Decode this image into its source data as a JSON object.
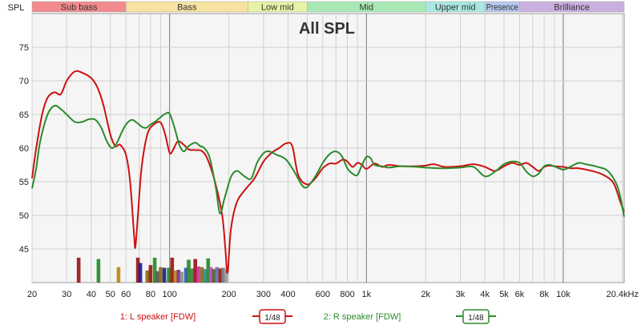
{
  "chart_data": {
    "type": "line",
    "title": "All SPL",
    "ylabel": "SPL",
    "x_scale": "log",
    "xlim": [
      20,
      20400
    ],
    "ylim": [
      40,
      80
    ],
    "grid": true,
    "bands": [
      {
        "label": "Sub bass",
        "from": 20,
        "to": 60,
        "color": "#f28a8e"
      },
      {
        "label": "Bass",
        "from": 60,
        "to": 250,
        "color": "#f7e2a0"
      },
      {
        "label": "Low mid",
        "from": 250,
        "to": 500,
        "color": "#e6f3a6"
      },
      {
        "label": "Mid",
        "from": 500,
        "to": 2000,
        "color": "#a9e8b4"
      },
      {
        "label": "Upper mid",
        "from": 2000,
        "to": 4000,
        "color": "#a9e8e2"
      },
      {
        "label": "Presence",
        "from": 4000,
        "to": 6000,
        "color": "#b6c8f0"
      },
      {
        "label": "Brilliance",
        "from": 6000,
        "to": 20400,
        "color": "#c9b0e0"
      }
    ],
    "x_ticks": [
      {
        "value": 20,
        "label": "20"
      },
      {
        "value": 30,
        "label": "30"
      },
      {
        "value": 40,
        "label": "40"
      },
      {
        "value": 50,
        "label": "50"
      },
      {
        "value": 60,
        "label": "60"
      },
      {
        "value": 80,
        "label": "80"
      },
      {
        "value": 100,
        "label": "100"
      },
      {
        "value": 200,
        "label": "200"
      },
      {
        "value": 300,
        "label": "300"
      },
      {
        "value": 400,
        "label": "400"
      },
      {
        "value": 600,
        "label": "600"
      },
      {
        "value": 800,
        "label": "800"
      },
      {
        "value": 1000,
        "label": "1k"
      },
      {
        "value": 2000,
        "label": "2k"
      },
      {
        "value": 3000,
        "label": "3k"
      },
      {
        "value": 4000,
        "label": "4k"
      },
      {
        "value": 5000,
        "label": "5k"
      },
      {
        "value": 6000,
        "label": "6k"
      },
      {
        "value": 8000,
        "label": "8k"
      },
      {
        "value": 10000,
        "label": "10k"
      },
      {
        "value": 20400,
        "label": "20.4kHz"
      }
    ],
    "y_ticks": [
      {
        "value": 45,
        "label": "45"
      },
      {
        "value": 50,
        "label": "50"
      },
      {
        "value": 55,
        "label": "55"
      },
      {
        "value": 60,
        "label": "60"
      },
      {
        "value": 65,
        "label": "65"
      },
      {
        "value": 70,
        "label": "70"
      },
      {
        "value": 75,
        "label": "75"
      }
    ],
    "series": [
      {
        "name": "1: L speaker [FDW]",
        "color": "#cc1111",
        "smoothing": "1/48",
        "points": [
          [
            20,
            55.5
          ],
          [
            21,
            60
          ],
          [
            22.5,
            65
          ],
          [
            24,
            67.5
          ],
          [
            26,
            68.3
          ],
          [
            28,
            68
          ],
          [
            30,
            70
          ],
          [
            33,
            71.4
          ],
          [
            36,
            71.2
          ],
          [
            40,
            70.4
          ],
          [
            43,
            69
          ],
          [
            46,
            66.5
          ],
          [
            50,
            62
          ],
          [
            53,
            60.3
          ],
          [
            56,
            60.5
          ],
          [
            60,
            59
          ],
          [
            63,
            55
          ],
          [
            66,
            47
          ],
          [
            67,
            45.3
          ],
          [
            69,
            50
          ],
          [
            72,
            57
          ],
          [
            77,
            62
          ],
          [
            83,
            63.5
          ],
          [
            90,
            63.8
          ],
          [
            95,
            62
          ],
          [
            100,
            59.3
          ],
          [
            104,
            59.7
          ],
          [
            110,
            61
          ],
          [
            118,
            60.5
          ],
          [
            125,
            59.8
          ],
          [
            135,
            59.7
          ],
          [
            145,
            59.6
          ],
          [
            155,
            58.5
          ],
          [
            170,
            55
          ],
          [
            185,
            50
          ],
          [
            192,
            45
          ],
          [
            197,
            41.5
          ],
          [
            205,
            48
          ],
          [
            220,
            52
          ],
          [
            245,
            54
          ],
          [
            270,
            55.5
          ],
          [
            300,
            58
          ],
          [
            330,
            59.3
          ],
          [
            360,
            60
          ],
          [
            390,
            60.7
          ],
          [
            420,
            60.3
          ],
          [
            450,
            56
          ],
          [
            500,
            54.6
          ],
          [
            550,
            55.5
          ],
          [
            600,
            57
          ],
          [
            650,
            57.7
          ],
          [
            700,
            57.7
          ],
          [
            760,
            58.3
          ],
          [
            800,
            58
          ],
          [
            850,
            57.2
          ],
          [
            900,
            57.8
          ],
          [
            950,
            57.5
          ],
          [
            1000,
            56.9
          ],
          [
            1100,
            57.7
          ],
          [
            1200,
            57.2
          ],
          [
            1300,
            57.5
          ],
          [
            1500,
            57.3
          ],
          [
            1800,
            57.3
          ],
          [
            2000,
            57.4
          ],
          [
            2200,
            57.6
          ],
          [
            2500,
            57.2
          ],
          [
            3000,
            57.3
          ],
          [
            3500,
            57.6
          ],
          [
            4000,
            57.2
          ],
          [
            4500,
            56.6
          ],
          [
            5000,
            57.3
          ],
          [
            5500,
            57.8
          ],
          [
            6000,
            57.5
          ],
          [
            6500,
            57.8
          ],
          [
            7000,
            57.2
          ],
          [
            7500,
            56.6
          ],
          [
            8000,
            57.2
          ],
          [
            8500,
            57.4
          ],
          [
            9000,
            57.3
          ],
          [
            10000,
            57.2
          ],
          [
            11000,
            57
          ],
          [
            12000,
            57
          ],
          [
            14000,
            56.6
          ],
          [
            16000,
            56
          ],
          [
            18000,
            54.8
          ],
          [
            19500,
            52
          ],
          [
            20400,
            50.5
          ]
        ]
      },
      {
        "name": "2: R speaker [FDW]",
        "color": "#2c8a2c",
        "smoothing": "1/48",
        "points": [
          [
            20,
            54
          ],
          [
            21,
            57
          ],
          [
            22,
            61
          ],
          [
            24,
            65
          ],
          [
            26,
            66.3
          ],
          [
            28,
            65.8
          ],
          [
            30,
            65
          ],
          [
            33,
            63.9
          ],
          [
            36,
            63.9
          ],
          [
            39,
            64.3
          ],
          [
            42,
            64.2
          ],
          [
            45,
            63
          ],
          [
            48,
            61
          ],
          [
            51,
            60
          ],
          [
            54,
            60.8
          ],
          [
            57,
            62.3
          ],
          [
            60,
            63.5
          ],
          [
            64,
            64.2
          ],
          [
            68,
            63.8
          ],
          [
            72,
            63.2
          ],
          [
            76,
            63
          ],
          [
            80,
            63.5
          ],
          [
            85,
            64
          ],
          [
            90,
            64.6
          ],
          [
            95,
            65.1
          ],
          [
            100,
            65.1
          ],
          [
            106,
            63
          ],
          [
            112,
            60.5
          ],
          [
            118,
            59.5
          ],
          [
            125,
            60.3
          ],
          [
            135,
            60.8
          ],
          [
            143,
            60.3
          ],
          [
            150,
            60
          ],
          [
            160,
            58.5
          ],
          [
            172,
            54
          ],
          [
            180,
            50.3
          ],
          [
            190,
            52.5
          ],
          [
            205,
            55.7
          ],
          [
            220,
            56.6
          ],
          [
            240,
            55.8
          ],
          [
            260,
            55.5
          ],
          [
            280,
            58
          ],
          [
            310,
            59.5
          ],
          [
            350,
            59
          ],
          [
            390,
            58.3
          ],
          [
            430,
            56.5
          ],
          [
            470,
            54.5
          ],
          [
            500,
            54.2
          ],
          [
            550,
            55.8
          ],
          [
            600,
            57.8
          ],
          [
            650,
            59.1
          ],
          [
            700,
            59.5
          ],
          [
            750,
            58.8
          ],
          [
            800,
            57
          ],
          [
            850,
            56.2
          ],
          [
            900,
            56
          ],
          [
            950,
            57.5
          ],
          [
            1000,
            58.7
          ],
          [
            1050,
            58.5
          ],
          [
            1100,
            57.5
          ],
          [
            1200,
            57.3
          ],
          [
            1300,
            57.1
          ],
          [
            1500,
            57.3
          ],
          [
            1800,
            57.2
          ],
          [
            2000,
            57.1
          ],
          [
            2500,
            57
          ],
          [
            3000,
            57.1
          ],
          [
            3500,
            57.2
          ],
          [
            4000,
            55.8
          ],
          [
            4500,
            56.5
          ],
          [
            5000,
            57.6
          ],
          [
            5500,
            58
          ],
          [
            6000,
            57.8
          ],
          [
            6500,
            56.5
          ],
          [
            7000,
            55.8
          ],
          [
            7500,
            56.2
          ],
          [
            8000,
            57.3
          ],
          [
            8500,
            57.5
          ],
          [
            9000,
            57.3
          ],
          [
            10000,
            56.8
          ],
          [
            11000,
            57.3
          ],
          [
            12000,
            57.8
          ],
          [
            13000,
            57.6
          ],
          [
            15000,
            57.2
          ],
          [
            17000,
            56.5
          ],
          [
            19000,
            54
          ],
          [
            20400,
            49.8
          ]
        ]
      }
    ],
    "resonance_markers": [
      {
        "freq": 34.5,
        "value": 43.7,
        "color": "#991111"
      },
      {
        "freq": 43.5,
        "value": 43.5,
        "color": "#1e8a1e"
      },
      {
        "freq": 55,
        "value": 42.3,
        "color": "#b8860b"
      },
      {
        "freq": 69,
        "value": 43.7,
        "color": "#991111"
      },
      {
        "freq": 71,
        "value": 42.9,
        "color": "#1a1a8c"
      },
      {
        "freq": 77,
        "value": 41.8,
        "color": "#8b6914"
      },
      {
        "freq": 80,
        "value": 42.6,
        "color": "#991111"
      },
      {
        "freq": 84,
        "value": 43.7,
        "color": "#1e8a1e"
      },
      {
        "freq": 87,
        "value": 41.7,
        "color": "#555555"
      },
      {
        "freq": 90,
        "value": 42.3,
        "color": "#8b6914"
      },
      {
        "freq": 94,
        "value": 42.2,
        "color": "#1a1a8c"
      },
      {
        "freq": 99,
        "value": 42.2,
        "color": "#1e8a1e"
      },
      {
        "freq": 103,
        "value": 43.7,
        "color": "#991111"
      },
      {
        "freq": 107,
        "value": 41.8,
        "color": "#b8860b"
      },
      {
        "freq": 111,
        "value": 41.9,
        "color": "#7a2b8a"
      },
      {
        "freq": 115,
        "value": 41.6,
        "color": "#888888"
      },
      {
        "freq": 121,
        "value": 42.2,
        "color": "#2a5ab8"
      },
      {
        "freq": 125,
        "value": 43.4,
        "color": "#1e8a1e"
      },
      {
        "freq": 130,
        "value": 42.1,
        "color": "#4a7a3a"
      },
      {
        "freq": 135,
        "value": 43.5,
        "color": "#991111"
      },
      {
        "freq": 140,
        "value": 42.4,
        "color": "#d02aa0"
      },
      {
        "freq": 146,
        "value": 42.3,
        "color": "#8b6914"
      },
      {
        "freq": 151,
        "value": 42.0,
        "color": "#2a8a8a"
      },
      {
        "freq": 157,
        "value": 43.6,
        "color": "#1e8a1e"
      },
      {
        "freq": 162,
        "value": 42.3,
        "color": "#c83cc8"
      },
      {
        "freq": 168,
        "value": 42.0,
        "color": "#3a6a1a"
      },
      {
        "freq": 174,
        "value": 42.3,
        "color": "#6a6aaa"
      },
      {
        "freq": 181,
        "value": 42.1,
        "color": "#991111"
      },
      {
        "freq": 187,
        "value": 42.2,
        "color": "#777777"
      },
      {
        "freq": 194,
        "value": 41.9,
        "color": "#999999"
      }
    ]
  },
  "legend": {
    "items": [
      {
        "label": "1: L speaker [FDW]",
        "smoothing": "1/48",
        "color": "#cc1111"
      },
      {
        "label": "2: R speaker [FDW]",
        "smoothing": "1/48",
        "color": "#2c8a2c"
      }
    ]
  }
}
